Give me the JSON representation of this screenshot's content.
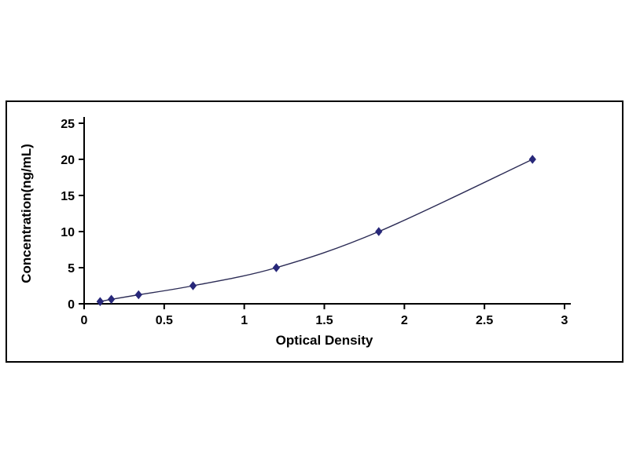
{
  "chart_data": {
    "type": "line",
    "title": "",
    "xlabel": "Optical Density",
    "ylabel": "Concentration(ng/mL)",
    "x": [
      0.1,
      0.17,
      0.34,
      0.68,
      1.2,
      1.84,
      2.8
    ],
    "y": [
      0.31,
      0.62,
      1.25,
      2.5,
      5,
      10,
      20
    ],
    "xlim": [
      0,
      3
    ],
    "ylim": [
      0,
      25
    ],
    "xticks": [
      0,
      0.5,
      1,
      1.5,
      2,
      2.5,
      3
    ],
    "yticks": [
      0,
      5,
      10,
      15,
      20,
      25
    ],
    "grid": false,
    "legend_position": "none",
    "marker": "diamond",
    "colors": {
      "line": "#2b2b55",
      "marker": "#28287a",
      "axis": "#000000",
      "background": "#ffffff"
    }
  }
}
